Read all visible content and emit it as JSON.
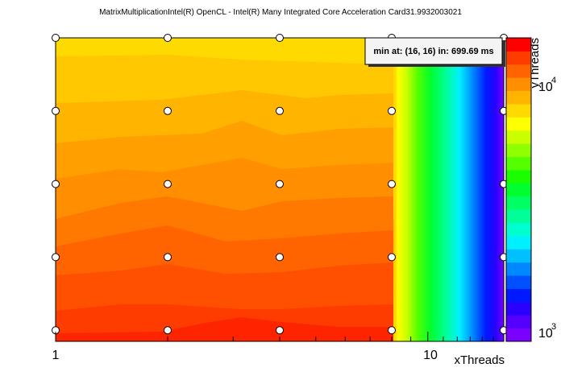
{
  "chart_data": {
    "type": "heatmap",
    "title": "MatrixMultiplicationIntel(R) OpenCL - Intel(R) Many Integrated Core Acceleration Card31.9932003021",
    "xlabel": "xThreads",
    "ylabel": "yThreads",
    "x_scale": "log",
    "y_scale": "log",
    "xlim": [
      1,
      16
    ],
    "ylim": [
      900,
      16000
    ],
    "x_tick_labels": [
      "1",
      "10"
    ],
    "y_tick_labels": [
      "10",
      "10"
    ],
    "y_tick_exponents": [
      "4",
      "3"
    ],
    "annotation": "min at: (16, 16) in: 699.69 ms",
    "markers": {
      "x": [
        1,
        2,
        4,
        8,
        16
      ],
      "y": [
        1000,
        2000,
        4000,
        8000,
        16000
      ]
    },
    "palette": [
      "#7a00ff",
      "#5500ff",
      "#2a00ff",
      "#0019ff",
      "#0050ff",
      "#0088ff",
      "#00c0ff",
      "#00f0ff",
      "#00ffd0",
      "#00ff9a",
      "#00ff64",
      "#00ff2e",
      "#1aff00",
      "#55ff00",
      "#90ff00",
      "#caff00",
      "#ffff00",
      "#ffda00",
      "#ffb400",
      "#ff8e00",
      "#ff6400",
      "#ff3c00",
      "#ff0000"
    ]
  }
}
